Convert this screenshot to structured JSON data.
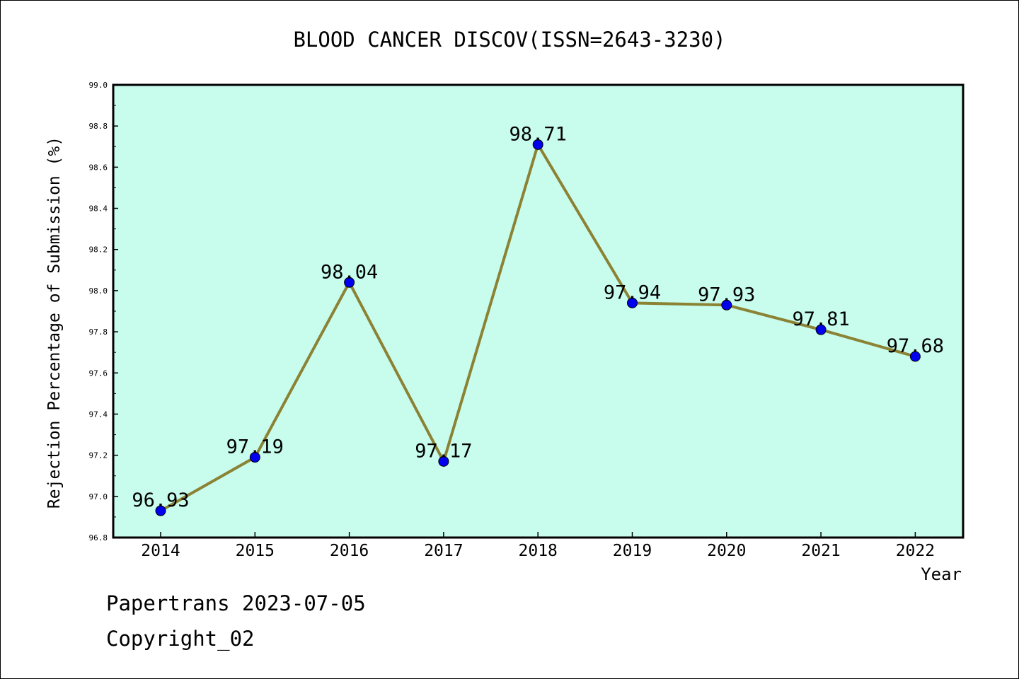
{
  "chart_data": {
    "type": "line",
    "title": "BLOOD CANCER DISCOV(ISSN=2643-3230)",
    "xlabel": "Year",
    "ylabel": "Rejection Percentage of Submission (%)",
    "categories": [
      "2014",
      "2015",
      "2016",
      "2017",
      "2018",
      "2019",
      "2020",
      "2021",
      "2022"
    ],
    "values": [
      96.93,
      97.19,
      98.04,
      97.17,
      98.71,
      97.94,
      97.93,
      97.81,
      97.68
    ],
    "data_labels": [
      "96.93",
      "97.19",
      "98.04",
      "97.17",
      "98.71",
      "97.94",
      "97.93",
      "97.81",
      "97.68"
    ],
    "ylim": [
      96.8,
      99.0
    ],
    "yticks": [
      "96.8",
      "97.0",
      "97.2",
      "97.4",
      "97.6",
      "97.8",
      "98.0",
      "98.2",
      "98.4",
      "98.6",
      "98.8",
      "99.0"
    ],
    "grid": false,
    "colors": {
      "plot_bg": "#c8fdee",
      "line": "#8b8234",
      "marker": "#0000ee"
    }
  },
  "footer": {
    "line1": "Papertrans 2023-07-05",
    "line2": "Copyright_02"
  }
}
